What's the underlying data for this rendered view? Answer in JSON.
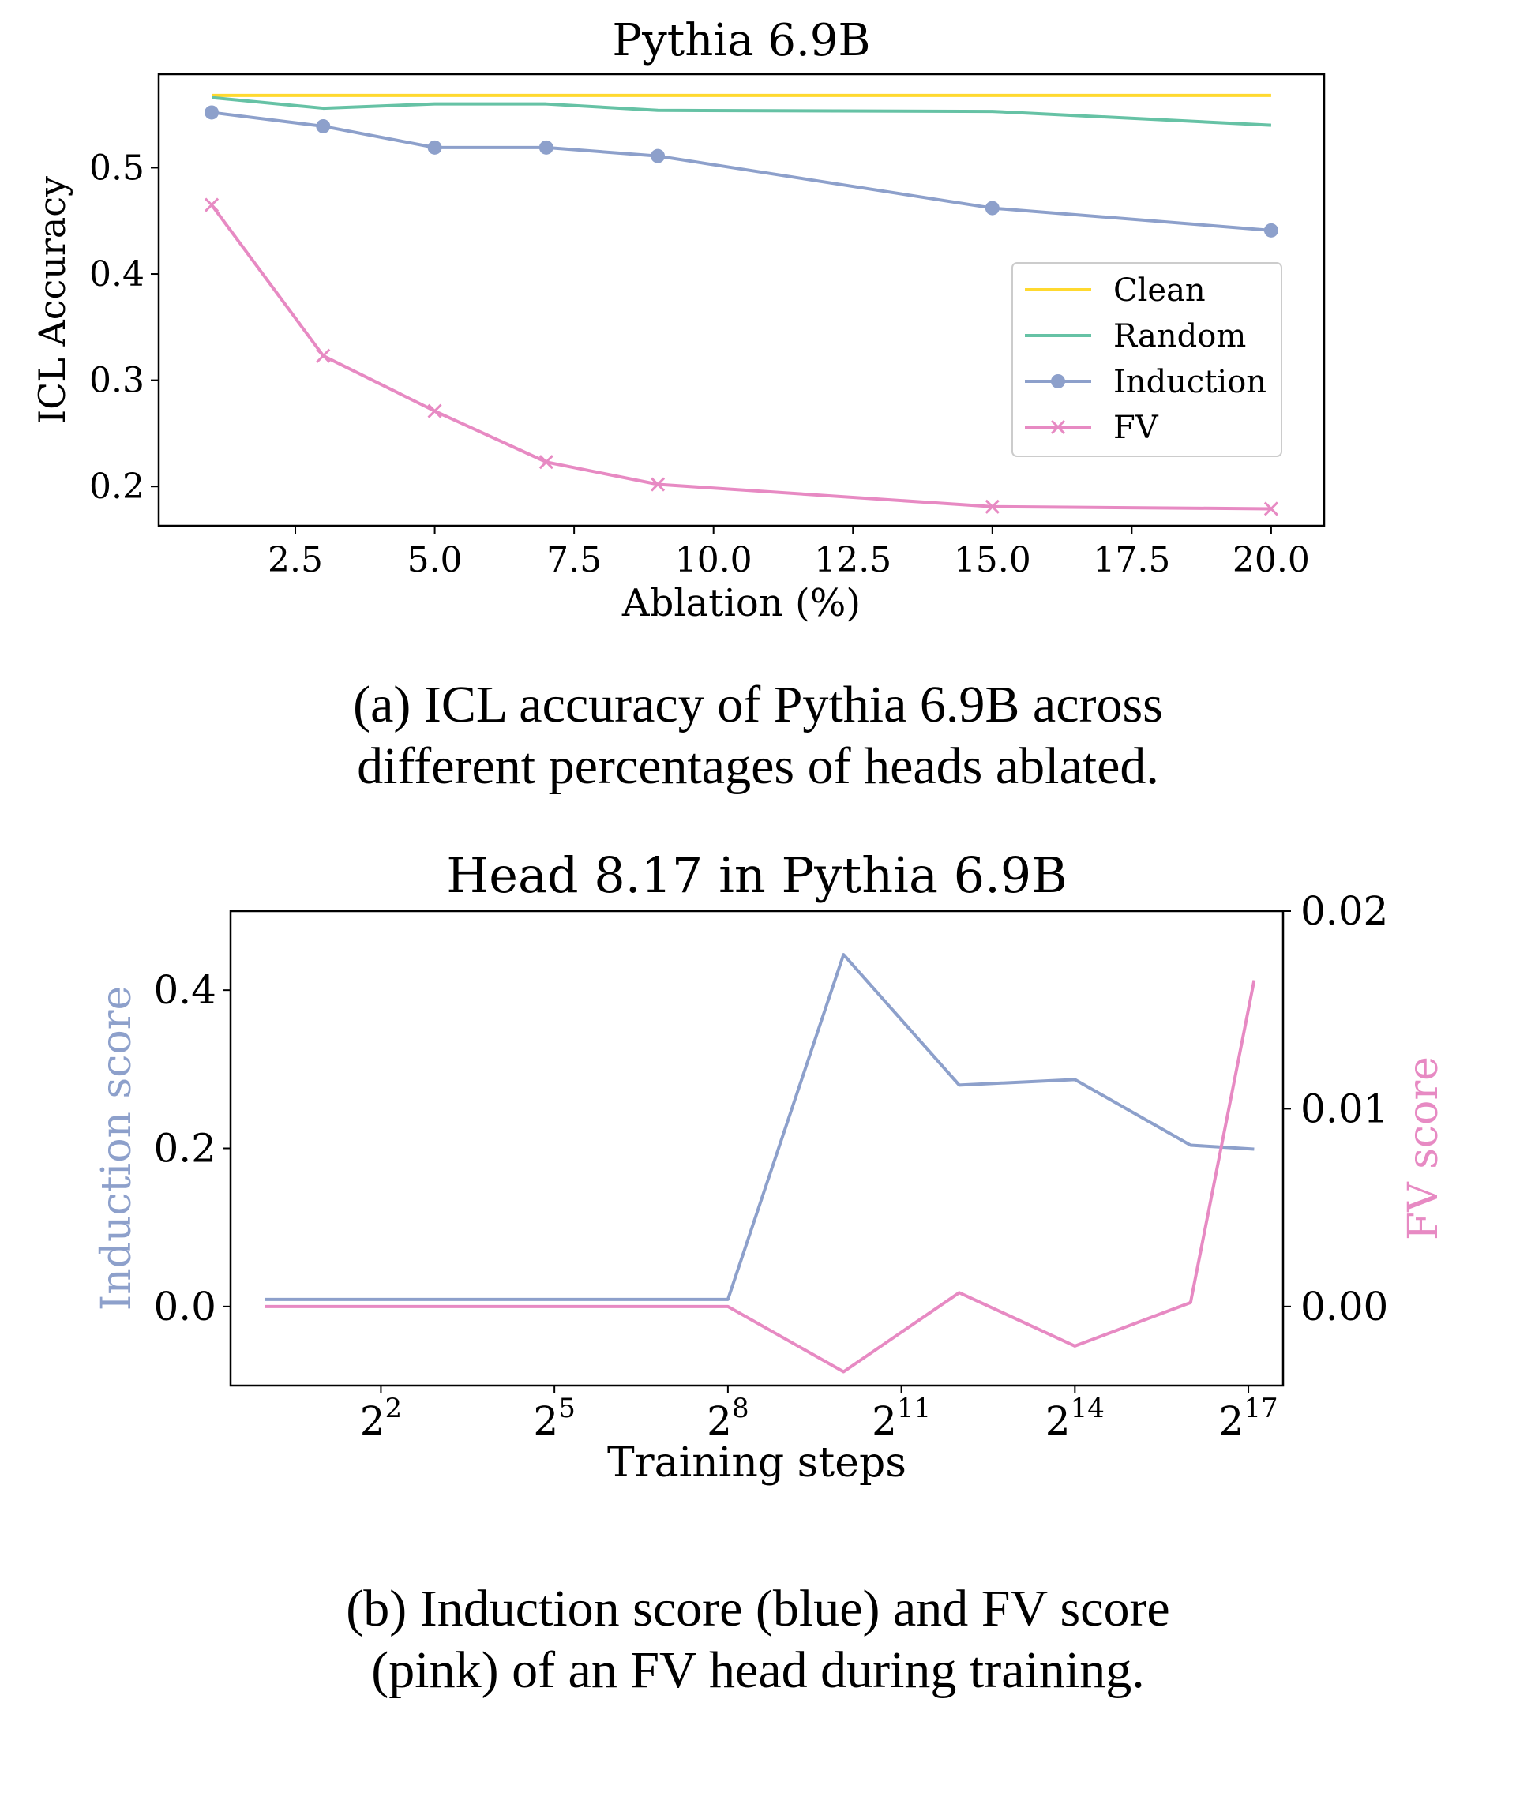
{
  "chart_data": [
    {
      "type": "line",
      "title": "Pythia 6.9B",
      "xlabel": "Ablation (%)",
      "ylabel": "ICL Accuracy",
      "xlim": [
        0.05,
        20.95
      ],
      "ylim": [
        0.163,
        0.588
      ],
      "xticks": [
        2.5,
        5.0,
        7.5,
        10.0,
        12.5,
        15.0,
        17.5,
        20.0
      ],
      "xtick_labels": [
        "2.5",
        "5.0",
        "7.5",
        "10.0",
        "12.5",
        "15.0",
        "17.5",
        "20.0"
      ],
      "yticks": [
        0.2,
        0.3,
        0.4,
        0.5
      ],
      "ytick_labels": [
        "0.2",
        "0.3",
        "0.4",
        "0.5"
      ],
      "legend_position": "center-right",
      "series": [
        {
          "name": "Clean",
          "color": "#ffd92f",
          "marker": "none",
          "x": [
            1,
            20
          ],
          "y": [
            0.568,
            0.568
          ]
        },
        {
          "name": "Random",
          "color": "#66c2a5",
          "marker": "none",
          "x": [
            1,
            3,
            5,
            7,
            9,
            15,
            20
          ],
          "y": [
            0.566,
            0.556,
            0.56,
            0.56,
            0.554,
            0.553,
            0.54
          ]
        },
        {
          "name": "Induction",
          "color": "#8da0cb",
          "marker": "circle",
          "x": [
            1,
            3,
            5,
            7,
            9,
            15,
            20
          ],
          "y": [
            0.552,
            0.539,
            0.519,
            0.519,
            0.511,
            0.462,
            0.441
          ]
        },
        {
          "name": "FV",
          "color": "#e78ac3",
          "marker": "x",
          "x": [
            1,
            3,
            5,
            7,
            9,
            15,
            20
          ],
          "y": [
            0.465,
            0.323,
            0.271,
            0.223,
            0.202,
            0.181,
            0.179
          ]
        }
      ]
    },
    {
      "type": "line",
      "title": "Head 8.17 in Pythia 6.9B",
      "xlabel": "Training steps",
      "x_scale": "log2",
      "xlim_log2": [
        -0.6,
        17.6
      ],
      "xticks_log2": [
        2,
        5,
        8,
        11,
        14,
        17
      ],
      "xtick_base": "2",
      "xtick_exponents": [
        "2",
        "5",
        "8",
        "11",
        "14",
        "17"
      ],
      "ylabel_left": "Induction score",
      "ylabel_left_color": "#8da0cb",
      "ylim_left": [
        -0.1,
        0.5
      ],
      "yticks_left": [
        0.0,
        0.2,
        0.4
      ],
      "ytick_left_labels": [
        "0.0",
        "0.2",
        "0.4"
      ],
      "ylabel_right": "FV score",
      "ylabel_right_color": "#e78ac3",
      "ylim_right": [
        -0.004,
        0.02
      ],
      "yticks_right": [
        0.0,
        0.01,
        0.02
      ],
      "ytick_right_labels": [
        "0.00",
        "0.01",
        "0.02"
      ],
      "series": [
        {
          "name": "Induction score",
          "axis": "left",
          "color": "#8da0cb",
          "x_log2": [
            0,
            8,
            10,
            12,
            14,
            16,
            17.1
          ],
          "y": [
            0.009,
            0.009,
            0.445,
            0.28,
            0.287,
            0.204,
            0.199
          ]
        },
        {
          "name": "FV score",
          "axis": "right",
          "color": "#e78ac3",
          "x_log2": [
            0,
            8,
            10,
            12,
            14,
            16,
            17.1
          ],
          "y": [
            0.0,
            0.0,
            -0.0033,
            0.0007,
            -0.002,
            0.0002,
            0.0165
          ]
        }
      ]
    }
  ],
  "captions": {
    "a_line1": "(a) ICL accuracy of Pythia 6.9B across",
    "a_line2": "different percentages of heads ablated.",
    "b_line1": "(b) Induction score (blue) and FV score",
    "b_line2": "(pink) of an FV head during training."
  }
}
